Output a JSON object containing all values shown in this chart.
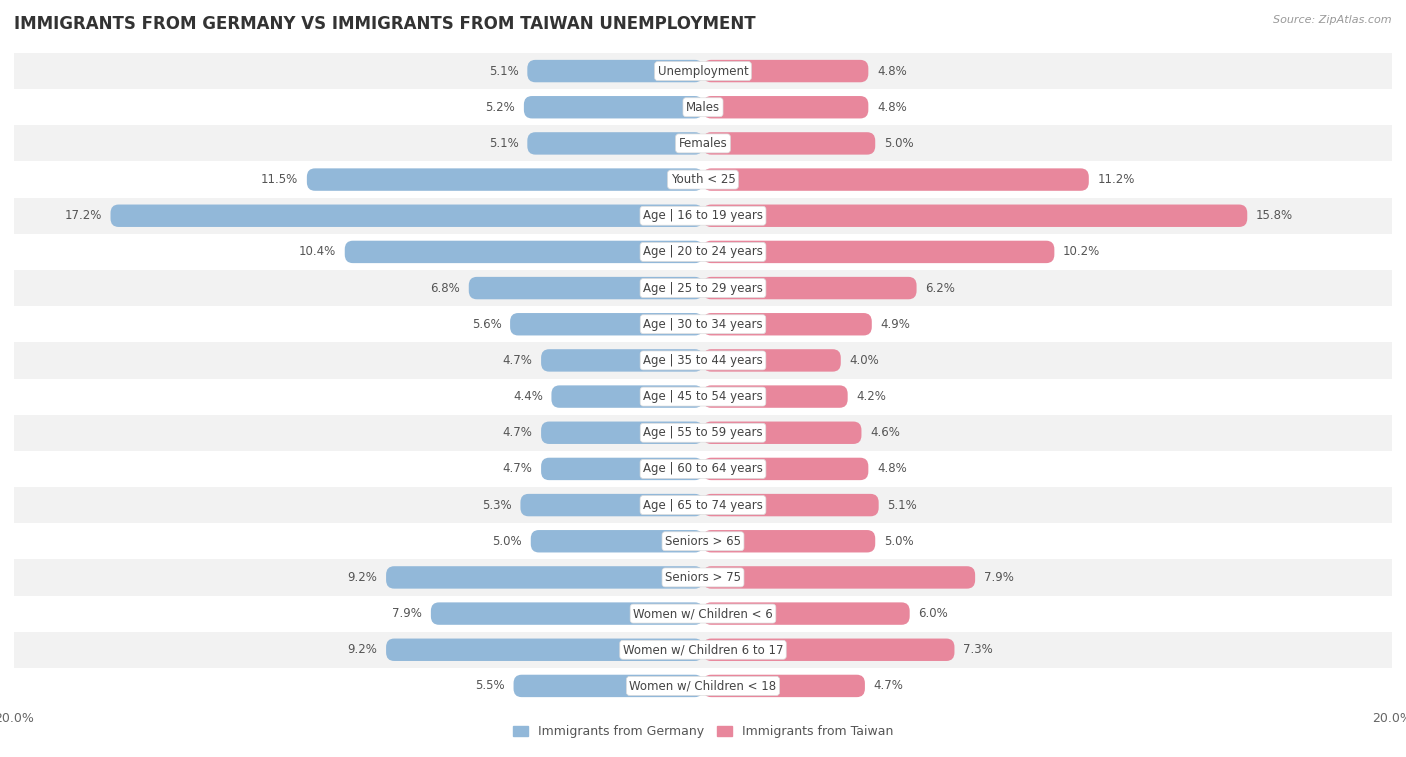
{
  "title": "IMMIGRANTS FROM GERMANY VS IMMIGRANTS FROM TAIWAN UNEMPLOYMENT",
  "source": "Source: ZipAtlas.com",
  "categories": [
    "Unemployment",
    "Males",
    "Females",
    "Youth < 25",
    "Age | 16 to 19 years",
    "Age | 20 to 24 years",
    "Age | 25 to 29 years",
    "Age | 30 to 34 years",
    "Age | 35 to 44 years",
    "Age | 45 to 54 years",
    "Age | 55 to 59 years",
    "Age | 60 to 64 years",
    "Age | 65 to 74 years",
    "Seniors > 65",
    "Seniors > 75",
    "Women w/ Children < 6",
    "Women w/ Children 6 to 17",
    "Women w/ Children < 18"
  ],
  "germany_values": [
    5.1,
    5.2,
    5.1,
    11.5,
    17.2,
    10.4,
    6.8,
    5.6,
    4.7,
    4.4,
    4.7,
    4.7,
    5.3,
    5.0,
    9.2,
    7.9,
    9.2,
    5.5
  ],
  "taiwan_values": [
    4.8,
    4.8,
    5.0,
    11.2,
    15.8,
    10.2,
    6.2,
    4.9,
    4.0,
    4.2,
    4.6,
    4.8,
    5.1,
    5.0,
    7.9,
    6.0,
    7.3,
    4.7
  ],
  "germany_color": "#92b8d9",
  "taiwan_color": "#e8879c",
  "row_color_odd": "#f2f2f2",
  "row_color_even": "#ffffff",
  "background_color": "#ffffff",
  "max_value": 20.0,
  "label_germany": "Immigrants from Germany",
  "label_taiwan": "Immigrants from Taiwan",
  "title_fontsize": 12,
  "source_fontsize": 8,
  "category_fontsize": 8.5,
  "value_fontsize": 8.5,
  "axis_fontsize": 9,
  "legend_fontsize": 9,
  "bar_height": 0.62
}
